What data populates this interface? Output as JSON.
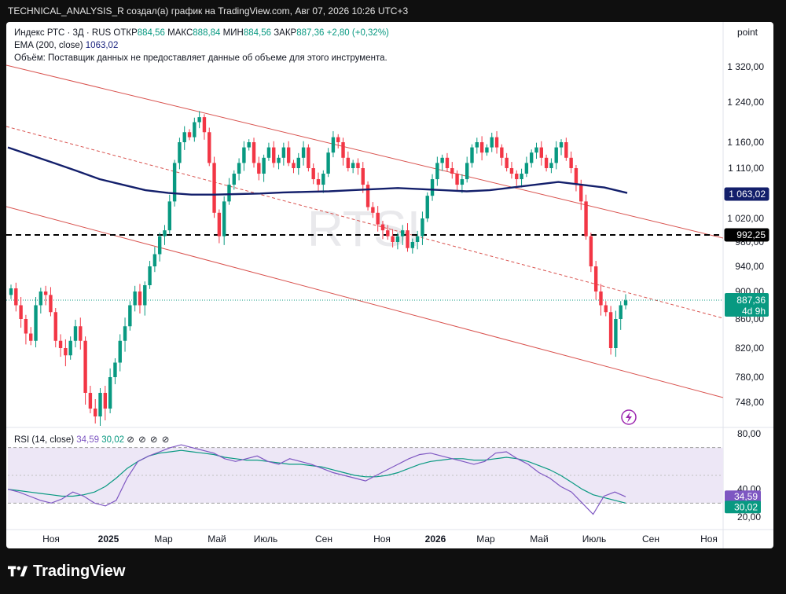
{
  "header": {
    "attribution": "TECHNICAL_ANALYSIS_R создал(а) график на TradingView.com, Авг 07, 2026 10:26 UTC+3"
  },
  "legend": {
    "symbol": "Индекс РТС · 3Д · RUS",
    "open_label": "ОТКР",
    "open": "884,56",
    "high_label": "МАКС",
    "high": "888,84",
    "low_label": "МИН",
    "low": "884,56",
    "close_label": "ЗАКР",
    "close": "887,36",
    "change": "+2,80 (+0,32%)",
    "ema_label": "EMA (200, close)",
    "ema_value": "1063,02",
    "volume_note": "Объём: Поставщик данных не предоставляет данные об объеме для этого инструмента."
  },
  "rsi_legend": {
    "label": "RSI (14, close)",
    "rsi_value": "34,59",
    "ma_value": "30,02",
    "icons": "⊘ ⊘ ⊘ ⊘"
  },
  "price_axis": {
    "unit_label": "point",
    "ticks": [
      "1 320,00",
      "1 240,00",
      "1 160,00",
      "1 110,00",
      "1 020,00",
      "980,00",
      "940,00",
      "900,00",
      "860,00",
      "820,00",
      "780,00",
      "748,00"
    ],
    "tags": {
      "ema": "1 063,02",
      "level": "992,25",
      "last": "887,36",
      "countdown": "4d 9h"
    }
  },
  "rsi_axis": {
    "ticks": [
      "80,00",
      "40,00",
      "20,00"
    ],
    "tags": {
      "rsi": "34,59",
      "ma": "30,02"
    }
  },
  "time_axis": {
    "labels": [
      "Ноя",
      "2025",
      "Мар",
      "Май",
      "Июль",
      "Сен",
      "Ноя",
      "2026",
      "Мар",
      "Май",
      "Июль",
      "Сен",
      "Ноя"
    ]
  },
  "watermark": "RTSI",
  "brand": "TradingView",
  "colors": {
    "up": "#089981",
    "down": "#f23645",
    "ema": "#131f6b",
    "channel": "#d9534f",
    "rsi": "#7e57c2",
    "rsi_ma": "#089981",
    "rsi_band": "#ede7f6"
  },
  "chart_data": {
    "type": "candlestick",
    "ylim": [
      740,
      1340
    ],
    "close_series": [
      905,
      880,
      860,
      840,
      830,
      880,
      900,
      895,
      870,
      830,
      820,
      810,
      830,
      850,
      830,
      760,
      740,
      730,
      760,
      740,
      780,
      800,
      830,
      850,
      880,
      900,
      880,
      910,
      940,
      960,
      990,
      1000,
      1050,
      1120,
      1160,
      1180,
      1170,
      1200,
      1210,
      1180,
      1120,
      1030,
      990,
      1050,
      1080,
      1100,
      1120,
      1150,
      1160,
      1120,
      1100,
      1130,
      1150,
      1120,
      1130,
      1150,
      1120,
      1110,
      1130,
      1150,
      1110,
      1090,
      1080,
      1100,
      1140,
      1170,
      1160,
      1130,
      1110,
      1120,
      1110,
      1080,
      1040,
      1030,
      1010,
      1000,
      990,
      980,
      990,
      1000,
      970,
      980,
      990,
      1020,
      1060,
      1090,
      1120,
      1130,
      1110,
      1100,
      1080,
      1090,
      1120,
      1150,
      1160,
      1140,
      1150,
      1170,
      1150,
      1130,
      1110,
      1100,
      1090,
      1100,
      1120,
      1140,
      1150,
      1130,
      1110,
      1120,
      1150,
      1160,
      1130,
      1110,
      1080,
      1050,
      990,
      940,
      900,
      880,
      870,
      820,
      860,
      880,
      887
    ],
    "ema200": [
      1150,
      1135,
      1120,
      1105,
      1090,
      1080,
      1070,
      1065,
      1062,
      1062,
      1063,
      1064,
      1066,
      1067,
      1068,
      1070,
      1072,
      1074,
      1072,
      1070,
      1068,
      1070,
      1075,
      1080,
      1085,
      1080,
      1075,
      1065
    ],
    "level_992": 992.25,
    "rsi_ylim": [
      15,
      85
    ],
    "rsi_levels": [
      70,
      30
    ],
    "rsi_series": [
      40,
      38,
      35,
      32,
      30,
      33,
      38,
      35,
      30,
      28,
      32,
      48,
      60,
      64,
      67,
      70,
      72,
      70,
      68,
      66,
      62,
      60,
      62,
      64,
      60,
      58,
      62,
      60,
      58,
      55,
      52,
      50,
      48,
      46,
      50,
      54,
      58,
      62,
      65,
      66,
      64,
      62,
      60,
      58,
      60,
      66,
      67,
      62,
      58,
      52,
      48,
      42,
      38,
      30,
      22,
      35,
      38,
      34.59
    ],
    "rsi_ma_series": [
      40,
      39,
      38,
      37,
      36,
      35,
      35,
      36,
      38,
      42,
      48,
      55,
      60,
      64,
      66,
      67,
      68,
      67,
      66,
      65,
      63,
      62,
      61,
      61,
      60,
      59,
      58,
      58,
      57,
      56,
      54,
      52,
      50,
      49,
      49,
      50,
      52,
      55,
      58,
      60,
      61,
      62,
      62,
      61,
      61,
      62,
      63,
      62,
      60,
      57,
      54,
      50,
      45,
      40,
      36,
      34,
      32,
      30.02
    ]
  }
}
